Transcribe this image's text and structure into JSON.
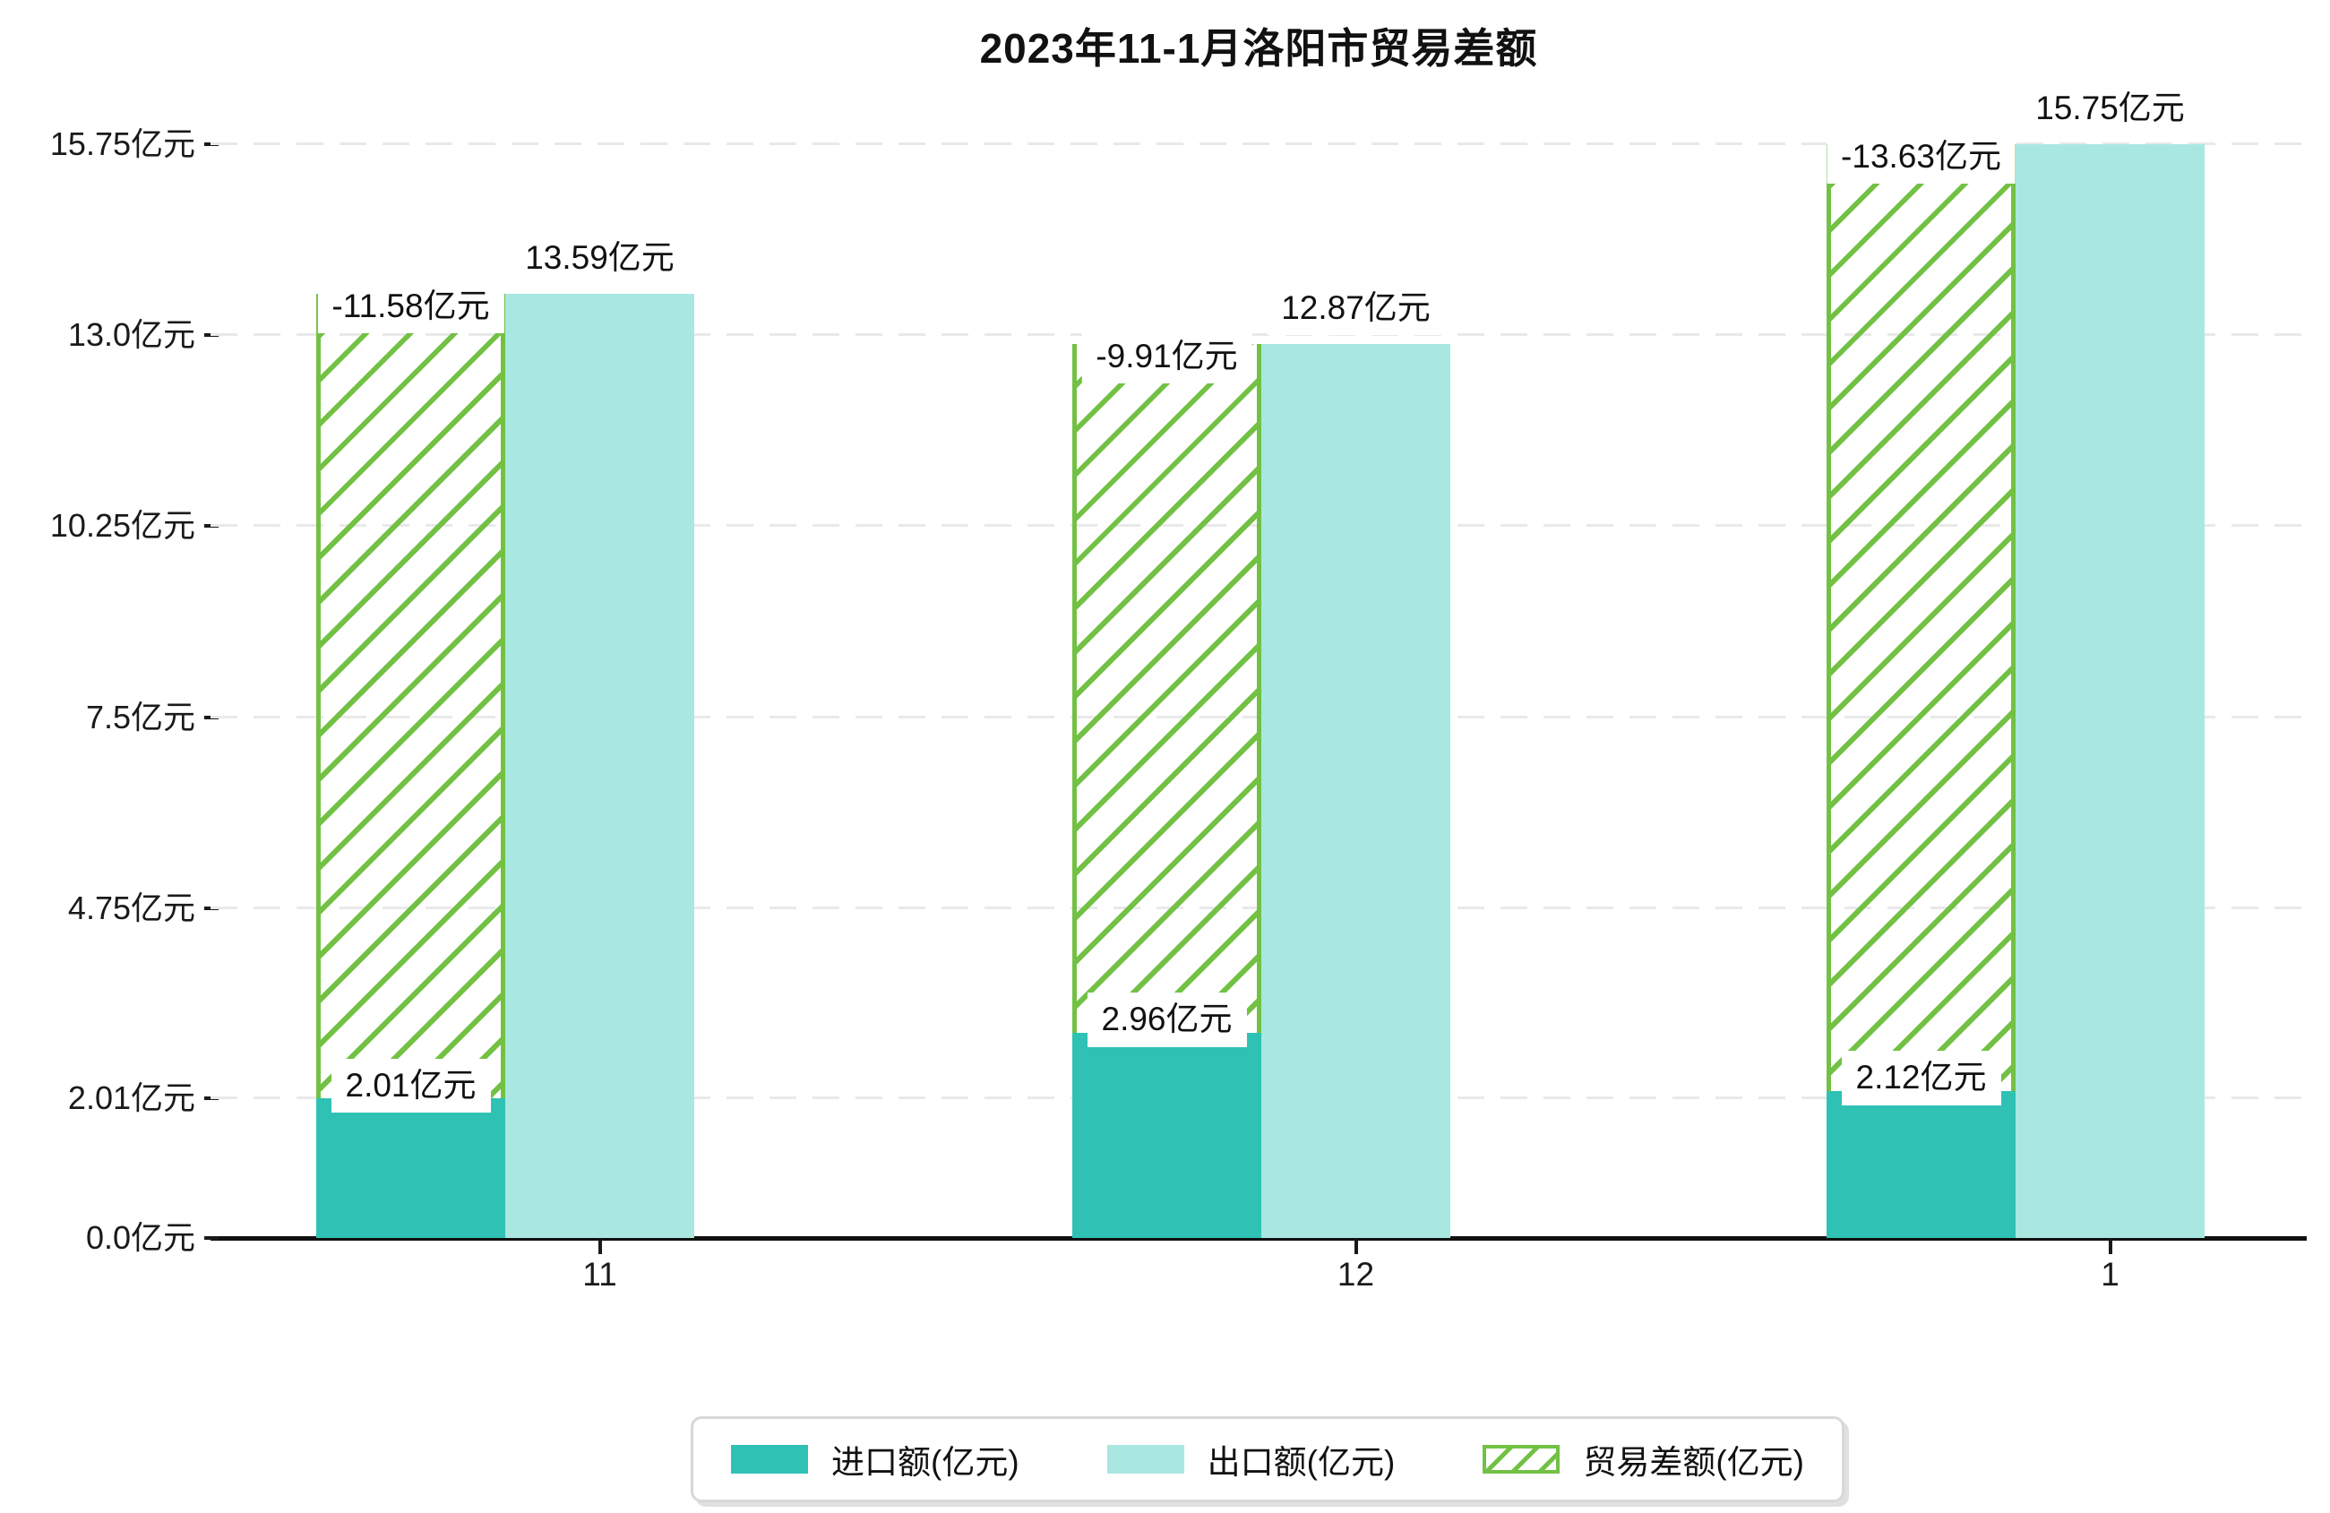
{
  "chart_data": {
    "type": "bar",
    "title": "2023年11-1月洛阳市贸易差额",
    "categories": [
      "11",
      "12",
      "1"
    ],
    "series": [
      {
        "name": "进口额(亿元)",
        "role": "import",
        "values": [
          2.01,
          2.96,
          2.12
        ],
        "labels": [
          "2.01亿元",
          "2.96亿元",
          "2.12亿元"
        ],
        "color": "#2fc2b4",
        "style": "solid"
      },
      {
        "name": "出口额(亿元)",
        "role": "export",
        "values": [
          13.59,
          12.87,
          15.75
        ],
        "labels": [
          "13.59亿元",
          "12.87亿元",
          "15.75亿元"
        ],
        "color": "#a9e8e1",
        "style": "solid"
      },
      {
        "name": "贸易差额(亿元)",
        "role": "balance",
        "values": [
          -11.58,
          -9.91,
          -13.63
        ],
        "labels": [
          "-11.58亿元",
          "-9.91亿元",
          "-13.63亿元"
        ],
        "color": "#72c144",
        "style": "hatched",
        "note": "hatched bar stacked on top of import bar, reaching export value"
      }
    ],
    "ylim": [
      0,
      15.75
    ],
    "yticks": [
      {
        "value": 0.0,
        "label": "0.0亿元"
      },
      {
        "value": 2.01,
        "label": "2.01亿元"
      },
      {
        "value": 4.75,
        "label": "4.75亿元"
      },
      {
        "value": 7.5,
        "label": "7.5亿元"
      },
      {
        "value": 10.25,
        "label": "10.25亿元"
      },
      {
        "value": 13.0,
        "label": "13.0亿元"
      },
      {
        "value": 15.75,
        "label": "15.75亿元"
      }
    ],
    "grid": "horizontal-dashed",
    "gridline_color": "#e9e9e9",
    "axis_color": "#111111",
    "legend_position": "bottom-center"
  }
}
